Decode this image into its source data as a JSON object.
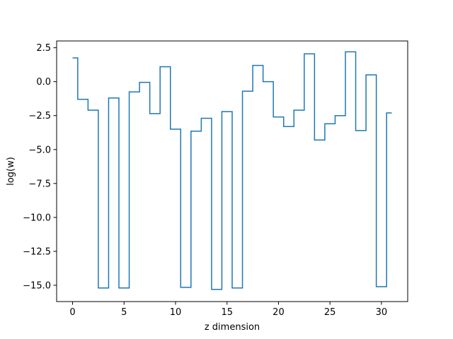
{
  "chart_data": {
    "type": "line",
    "step": "mid",
    "xlabel": "z dimension",
    "ylabel": "log(w)",
    "xlim": [
      -1.55,
      32.55
    ],
    "ylim": [
      -16.2,
      3.0
    ],
    "xticks": [
      0,
      5,
      10,
      15,
      20,
      25,
      30
    ],
    "yticks": [
      2.5,
      0.0,
      -2.5,
      -5.0,
      -7.5,
      -10.0,
      -12.5,
      -15.0
    ],
    "xtick_labels": [
      "0",
      "5",
      "10",
      "15",
      "20",
      "25",
      "30"
    ],
    "ytick_labels": [
      "2.5",
      "0.0",
      "−2.5",
      "−5.0",
      "−7.5",
      "−10.0",
      "−12.5",
      "−15.0"
    ],
    "grid": false,
    "series": [
      {
        "color": "#1f77b4",
        "x": [
          0,
          1,
          2,
          3,
          4,
          5,
          6,
          7,
          8,
          9,
          10,
          11,
          12,
          13,
          14,
          15,
          16,
          17,
          18,
          19,
          20,
          21,
          22,
          23,
          24,
          25,
          26,
          27,
          28,
          29,
          30,
          31
        ],
        "y": [
          1.75,
          -1.3,
          -2.1,
          -15.2,
          -1.2,
          -15.2,
          -0.75,
          -0.05,
          -2.35,
          1.1,
          -3.5,
          -15.15,
          -3.65,
          -2.7,
          -15.3,
          -2.2,
          -15.2,
          -0.7,
          1.2,
          0.0,
          -2.6,
          -3.3,
          -2.1,
          2.05,
          -4.3,
          -3.1,
          -2.5,
          2.2,
          -3.6,
          0.5,
          -15.1,
          -2.3
        ]
      }
    ]
  }
}
